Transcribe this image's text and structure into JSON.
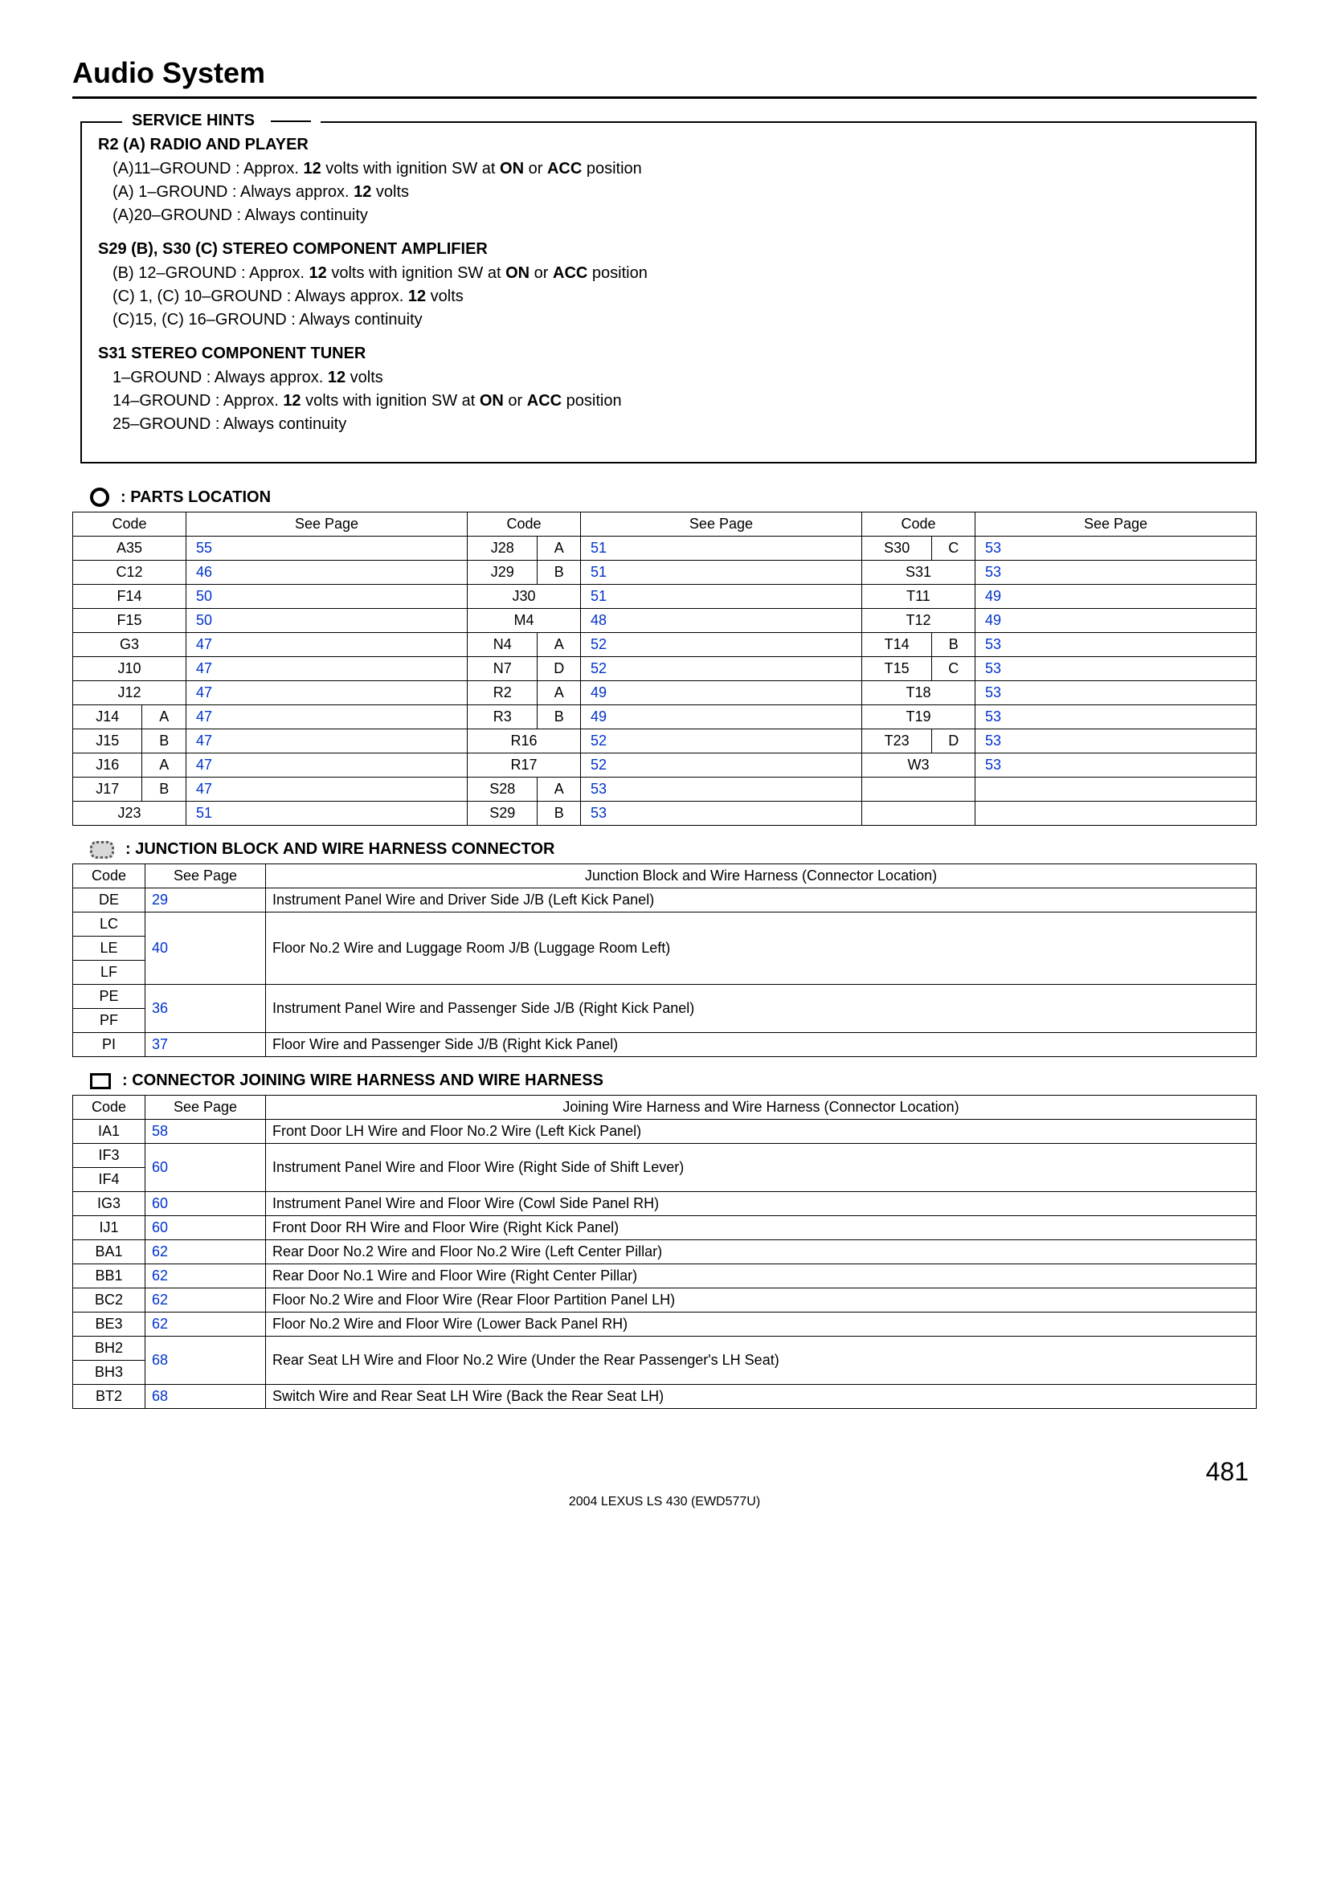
{
  "title": "Audio System",
  "service_hints": {
    "title": "SERVICE HINTS",
    "sections": [
      {
        "heading": "R2 (A)  RADIO AND PLAYER",
        "lines": [
          {
            "pre": "(A)11–GROUND : Approx. ",
            "b1": "12",
            "mid": " volts with ignition SW at ",
            "b2": "ON",
            "mid2": " or ",
            "b3": "ACC",
            "post": " position"
          },
          {
            "pre": "(A)  1–GROUND : Always approx. ",
            "b1": "12",
            "mid": " volts",
            "b2": "",
            "mid2": "",
            "b3": "",
            "post": ""
          },
          {
            "pre": "(A)20–GROUND : Always continuity",
            "b1": "",
            "mid": "",
            "b2": "",
            "mid2": "",
            "b3": "",
            "post": ""
          }
        ]
      },
      {
        "heading": "S29 (B), S30 (C)  STEREO COMPONENT AMPLIFIER",
        "lines": [
          {
            "pre": "   (B) 12–GROUND : Approx. ",
            "b1": "12",
            "mid": " volts with ignition SW at ",
            "b2": "ON",
            "mid2": " or ",
            "b3": "ACC",
            "post": " position"
          },
          {
            "pre": "(C)  1, (C) 10–GROUND : Always approx. ",
            "b1": "12",
            "mid": " volts",
            "b2": "",
            "mid2": "",
            "b3": "",
            "post": ""
          },
          {
            "pre": "(C)15, (C) 16–GROUND : Always continuity",
            "b1": "",
            "mid": "",
            "b2": "",
            "mid2": "",
            "b3": "",
            "post": ""
          }
        ]
      },
      {
        "heading": "S31  STEREO COMPONENT TUNER",
        "lines": [
          {
            "pre": "  1–GROUND : Always approx. ",
            "b1": "12",
            "mid": " volts",
            "b2": "",
            "mid2": "",
            "b3": "",
            "post": ""
          },
          {
            "pre": "14–GROUND : Approx. ",
            "b1": "12",
            "mid": " volts with ignition SW at ",
            "b2": "ON",
            "mid2": " or ",
            "b3": "ACC",
            "post": " position"
          },
          {
            "pre": "25–GROUND : Always continuity",
            "b1": "",
            "mid": "",
            "b2": "",
            "mid2": "",
            "b3": "",
            "post": ""
          }
        ]
      }
    ]
  },
  "parts_location": {
    "title": ": PARTS LOCATION",
    "headers": [
      "Code",
      "See Page",
      "Code",
      "See Page",
      "Code",
      "See Page"
    ],
    "rows": [
      [
        {
          "c": "A35",
          "span": 2
        },
        {
          "p": "55"
        },
        {
          "c": "J28"
        },
        {
          "c": "A"
        },
        {
          "p": "51"
        },
        {
          "c": "S30"
        },
        {
          "c": "C"
        },
        {
          "p": "53"
        }
      ],
      [
        {
          "c": "C12",
          "span": 2
        },
        {
          "p": "46"
        },
        {
          "c": "J29"
        },
        {
          "c": "B"
        },
        {
          "p": "51"
        },
        {
          "c": "S31",
          "span": 2
        },
        {
          "p": "53"
        }
      ],
      [
        {
          "c": "F14",
          "span": 2
        },
        {
          "p": "50"
        },
        {
          "c": "J30",
          "span": 2
        },
        {
          "p": "51"
        },
        {
          "c": "T11",
          "span": 2
        },
        {
          "p": "49"
        }
      ],
      [
        {
          "c": "F15",
          "span": 2
        },
        {
          "p": "50"
        },
        {
          "c": "M4",
          "span": 2
        },
        {
          "p": "48"
        },
        {
          "c": "T12",
          "span": 2
        },
        {
          "p": "49"
        }
      ],
      [
        {
          "c": "G3",
          "span": 2
        },
        {
          "p": "47"
        },
        {
          "c": "N4"
        },
        {
          "c": "A"
        },
        {
          "p": "52"
        },
        {
          "c": "T14"
        },
        {
          "c": "B"
        },
        {
          "p": "53"
        }
      ],
      [
        {
          "c": "J10",
          "span": 2
        },
        {
          "p": "47"
        },
        {
          "c": "N7"
        },
        {
          "c": "D"
        },
        {
          "p": "52"
        },
        {
          "c": "T15"
        },
        {
          "c": "C"
        },
        {
          "p": "53"
        }
      ],
      [
        {
          "c": "J12",
          "span": 2
        },
        {
          "p": "47"
        },
        {
          "c": "R2"
        },
        {
          "c": "A"
        },
        {
          "p": "49"
        },
        {
          "c": "T18",
          "span": 2
        },
        {
          "p": "53"
        }
      ],
      [
        {
          "c": "J14"
        },
        {
          "c": "A"
        },
        {
          "p": "47"
        },
        {
          "c": "R3"
        },
        {
          "c": "B"
        },
        {
          "p": "49"
        },
        {
          "c": "T19",
          "span": 2
        },
        {
          "p": "53"
        }
      ],
      [
        {
          "c": "J15"
        },
        {
          "c": "B"
        },
        {
          "p": "47"
        },
        {
          "c": "R16",
          "span": 2
        },
        {
          "p": "52"
        },
        {
          "c": "T23"
        },
        {
          "c": "D"
        },
        {
          "p": "53"
        }
      ],
      [
        {
          "c": "J16"
        },
        {
          "c": "A"
        },
        {
          "p": "47"
        },
        {
          "c": "R17",
          "span": 2
        },
        {
          "p": "52"
        },
        {
          "c": "W3",
          "span": 2
        },
        {
          "p": "53"
        }
      ],
      [
        {
          "c": "J17"
        },
        {
          "c": "B"
        },
        {
          "p": "47"
        },
        {
          "c": "S28"
        },
        {
          "c": "A"
        },
        {
          "p": "53"
        },
        {
          "c": "",
          "span": 2
        },
        {
          "p": "",
          "noLink": true
        }
      ],
      [
        {
          "c": "J23",
          "span": 2
        },
        {
          "p": "51"
        },
        {
          "c": "S29"
        },
        {
          "c": "B"
        },
        {
          "p": "53"
        },
        {
          "c": "",
          "span": 2
        },
        {
          "p": "",
          "noLink": true
        }
      ]
    ],
    "col_widths": [
      "70px",
      "70px",
      "350px",
      "70px",
      "70px",
      "350px",
      "70px",
      "70px",
      "350px"
    ]
  },
  "junction_block": {
    "title": ": JUNCTION BLOCK AND WIRE HARNESS CONNECTOR",
    "headers": [
      "Code",
      "See Page",
      "Junction Block and Wire Harness (Connector Location)"
    ],
    "rows": [
      {
        "code": "DE",
        "page": "29",
        "desc": "Instrument Panel Wire and Driver Side J/B (Left Kick Panel)",
        "pageRowspan": 1,
        "descRowspan": 1
      },
      {
        "code": "LC",
        "page": "40",
        "desc": "Floor No.2 Wire and Luggage Room J/B (Luggage Room Left)",
        "pageRowspan": 3,
        "descRowspan": 3
      },
      {
        "code": "LE"
      },
      {
        "code": "LF"
      },
      {
        "code": "PE",
        "page": "36",
        "desc": "Instrument Panel Wire and Passenger Side J/B (Right Kick Panel)",
        "pageRowspan": 2,
        "descRowspan": 2
      },
      {
        "code": "PF"
      },
      {
        "code": "PI",
        "page": "37",
        "desc": "Floor Wire and Passenger Side J/B (Right Kick Panel)",
        "pageRowspan": 1,
        "descRowspan": 1
      }
    ]
  },
  "connector_joining": {
    "title": ": CONNECTOR JOINING WIRE HARNESS AND WIRE HARNESS",
    "headers": [
      "Code",
      "See Page",
      "Joining Wire Harness and Wire Harness (Connector Location)"
    ],
    "rows": [
      {
        "code": "IA1",
        "page": "58",
        "desc": "Front Door LH Wire and Floor No.2 Wire (Left Kick Panel)",
        "pageRowspan": 1,
        "descRowspan": 1
      },
      {
        "code": "IF3",
        "page": "60",
        "desc": "Instrument Panel Wire and Floor Wire (Right Side of Shift Lever)",
        "pageRowspan": 2,
        "descRowspan": 2
      },
      {
        "code": "IF4"
      },
      {
        "code": "IG3",
        "page": "60",
        "desc": "Instrument Panel Wire and Floor Wire (Cowl Side Panel RH)",
        "pageRowspan": 1,
        "descRowspan": 1
      },
      {
        "code": "IJ1",
        "page": "60",
        "desc": "Front Door RH Wire and Floor Wire (Right Kick Panel)",
        "pageRowspan": 1,
        "descRowspan": 1
      },
      {
        "code": "BA1",
        "page": "62",
        "desc": "Rear Door No.2 Wire and Floor No.2 Wire (Left Center Pillar)",
        "pageRowspan": 1,
        "descRowspan": 1
      },
      {
        "code": "BB1",
        "page": "62",
        "desc": "Rear Door No.1 Wire and Floor Wire (Right Center Pillar)",
        "pageRowspan": 1,
        "descRowspan": 1
      },
      {
        "code": "BC2",
        "page": "62",
        "desc": "Floor No.2 Wire and Floor Wire (Rear Floor Partition Panel LH)",
        "pageRowspan": 1,
        "descRowspan": 1
      },
      {
        "code": "BE3",
        "page": "62",
        "desc": "Floor No.2 Wire and Floor Wire (Lower Back Panel RH)",
        "pageRowspan": 1,
        "descRowspan": 1
      },
      {
        "code": "BH2",
        "page": "68",
        "desc": "Rear Seat LH Wire and Floor No.2 Wire (Under the Rear Passenger's LH Seat)",
        "pageRowspan": 2,
        "descRowspan": 2
      },
      {
        "code": "BH3"
      },
      {
        "code": "BT2",
        "page": "68",
        "desc": "Switch Wire and Rear Seat LH Wire (Back the Rear Seat LH)",
        "pageRowspan": 1,
        "descRowspan": 1
      }
    ]
  },
  "footer": {
    "page_number": "481",
    "sub": "2004 LEXUS LS 430 (EWD577U)"
  },
  "colors": {
    "text": "#000000",
    "link": "#0033cc",
    "background": "#ffffff"
  }
}
